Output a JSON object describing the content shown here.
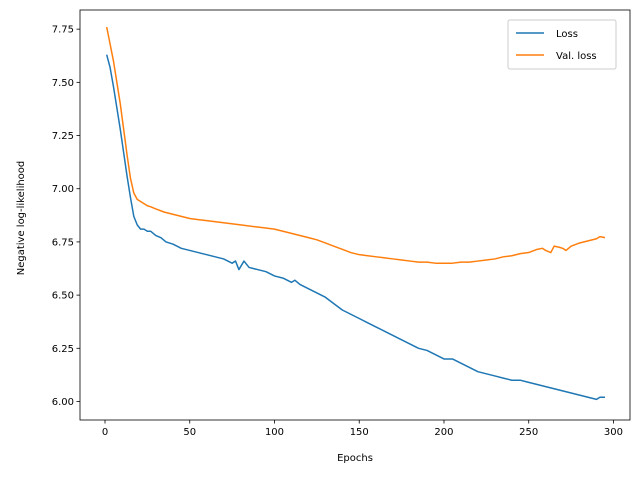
{
  "chart_data": {
    "type": "line",
    "title": "",
    "xlabel": "Epochs",
    "ylabel": "Negative log-likelihood",
    "xlim": [
      -14.75,
      309.75
    ],
    "ylim": [
      5.913,
      7.84
    ],
    "xticks": [
      0,
      50,
      100,
      150,
      200,
      250,
      300
    ],
    "yticks": [
      6.0,
      6.25,
      6.5,
      6.75,
      7.0,
      7.25,
      7.5,
      7.75
    ],
    "xtick_labels": [
      "0",
      "50",
      "100",
      "150",
      "200",
      "250",
      "300"
    ],
    "ytick_labels": [
      "6.00",
      "6.25",
      "6.50",
      "6.75",
      "7.00",
      "7.25",
      "7.50",
      "7.75"
    ],
    "grid": false,
    "legend_position": "top-right",
    "series": [
      {
        "name": "Loss",
        "color": "#1f77b4",
        "x": [
          1,
          3,
          5,
          7,
          9,
          11,
          13,
          15,
          17,
          19,
          21,
          23,
          25,
          27,
          30,
          33,
          36,
          40,
          45,
          50,
          55,
          60,
          65,
          70,
          75,
          77,
          79,
          82,
          85,
          90,
          95,
          100,
          105,
          110,
          112,
          115,
          120,
          125,
          130,
          135,
          140,
          145,
          150,
          155,
          160,
          165,
          170,
          175,
          180,
          185,
          190,
          195,
          200,
          205,
          210,
          215,
          220,
          225,
          230,
          235,
          240,
          245,
          250,
          255,
          260,
          265,
          270,
          275,
          280,
          285,
          290,
          292,
          295
        ],
        "y": [
          7.63,
          7.57,
          7.48,
          7.38,
          7.28,
          7.17,
          7.06,
          6.96,
          6.87,
          6.83,
          6.81,
          6.81,
          6.8,
          6.8,
          6.78,
          6.77,
          6.75,
          6.74,
          6.72,
          6.71,
          6.7,
          6.69,
          6.68,
          6.67,
          6.65,
          6.66,
          6.62,
          6.66,
          6.63,
          6.62,
          6.61,
          6.59,
          6.58,
          6.56,
          6.57,
          6.55,
          6.53,
          6.51,
          6.49,
          6.46,
          6.43,
          6.41,
          6.39,
          6.37,
          6.35,
          6.33,
          6.31,
          6.29,
          6.27,
          6.25,
          6.24,
          6.22,
          6.2,
          6.2,
          6.18,
          6.16,
          6.14,
          6.13,
          6.12,
          6.11,
          6.1,
          6.1,
          6.09,
          6.08,
          6.07,
          6.06,
          6.05,
          6.04,
          6.03,
          6.02,
          6.01,
          6.02,
          6.02
        ]
      },
      {
        "name": "Val. loss",
        "color": "#ff7f0e",
        "x": [
          1,
          3,
          5,
          7,
          9,
          11,
          13,
          15,
          17,
          19,
          21,
          23,
          25,
          27,
          30,
          35,
          40,
          45,
          50,
          55,
          60,
          70,
          80,
          90,
          100,
          105,
          110,
          115,
          120,
          125,
          130,
          135,
          140,
          145,
          150,
          155,
          160,
          165,
          170,
          175,
          180,
          185,
          190,
          195,
          200,
          205,
          210,
          215,
          220,
          225,
          230,
          235,
          240,
          245,
          250,
          255,
          258,
          260,
          263,
          265,
          268,
          270,
          272,
          275,
          280,
          285,
          290,
          292,
          295
        ],
        "y": [
          7.76,
          7.68,
          7.6,
          7.5,
          7.4,
          7.28,
          7.16,
          7.05,
          6.98,
          6.95,
          6.94,
          6.93,
          6.92,
          6.915,
          6.905,
          6.89,
          6.88,
          6.87,
          6.86,
          6.855,
          6.85,
          6.84,
          6.83,
          6.82,
          6.81,
          6.8,
          6.79,
          6.78,
          6.77,
          6.76,
          6.745,
          6.73,
          6.715,
          6.7,
          6.69,
          6.685,
          6.68,
          6.675,
          6.67,
          6.665,
          6.66,
          6.655,
          6.655,
          6.65,
          6.65,
          6.65,
          6.655,
          6.655,
          6.66,
          6.665,
          6.67,
          6.68,
          6.685,
          6.695,
          6.7,
          6.715,
          6.72,
          6.71,
          6.7,
          6.73,
          6.725,
          6.72,
          6.71,
          6.73,
          6.745,
          6.755,
          6.765,
          6.775,
          6.77
        ]
      }
    ]
  }
}
